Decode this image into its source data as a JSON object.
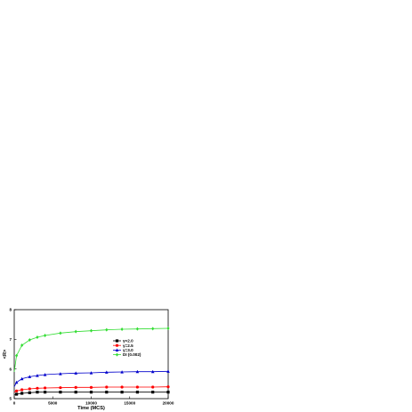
{
  "chart_data": {
    "type": "line",
    "title": "",
    "xlabel": "Time (MCS)",
    "ylabel": "<R>",
    "xlim": [
      0,
      20000
    ],
    "ylim": [
      5,
      8
    ],
    "xticks": [
      0,
      5000,
      10000,
      15000,
      20000
    ],
    "yticks": [
      5,
      6,
      7,
      8
    ],
    "grid": false,
    "legend_position": "center-right",
    "series": [
      {
        "name": "γ=2.0",
        "color": "#000000",
        "marker": "square",
        "x": [
          0,
          300,
          1000,
          2000,
          3000,
          4000,
          6000,
          8000,
          10000,
          12000,
          14000,
          16000,
          18000,
          20000
        ],
        "y": [
          5.12,
          5.15,
          5.18,
          5.2,
          5.22,
          5.22,
          5.22,
          5.22,
          5.22,
          5.22,
          5.22,
          5.22,
          5.22,
          5.22
        ]
      },
      {
        "name": "γ=2.5",
        "color": "#ff0000",
        "marker": "circle",
        "x": [
          0,
          300,
          1000,
          2000,
          3000,
          4000,
          6000,
          8000,
          10000,
          12000,
          14000,
          16000,
          18000,
          20000
        ],
        "y": [
          5.22,
          5.26,
          5.3,
          5.33,
          5.35,
          5.36,
          5.37,
          5.38,
          5.38,
          5.39,
          5.39,
          5.39,
          5.39,
          5.4
        ]
      },
      {
        "name": "γ=3.0",
        "color": "#0000cc",
        "marker": "triangle",
        "x": [
          0,
          300,
          1000,
          2000,
          3000,
          4000,
          6000,
          8000,
          10000,
          12000,
          14000,
          16000,
          18000,
          20000
        ],
        "y": [
          5.4,
          5.55,
          5.67,
          5.74,
          5.78,
          5.81,
          5.84,
          5.86,
          5.87,
          5.89,
          5.9,
          5.91,
          5.91,
          5.92
        ]
      },
      {
        "name": "DI (0.002)",
        "color": "#33dd33",
        "marker": "diamond",
        "x": [
          0,
          300,
          1000,
          2000,
          3000,
          4000,
          6000,
          8000,
          10000,
          12000,
          14000,
          16000,
          18000,
          20000
        ],
        "y": [
          5.9,
          6.45,
          6.8,
          6.98,
          7.07,
          7.13,
          7.21,
          7.26,
          7.29,
          7.32,
          7.34,
          7.35,
          7.36,
          7.37
        ]
      }
    ]
  }
}
